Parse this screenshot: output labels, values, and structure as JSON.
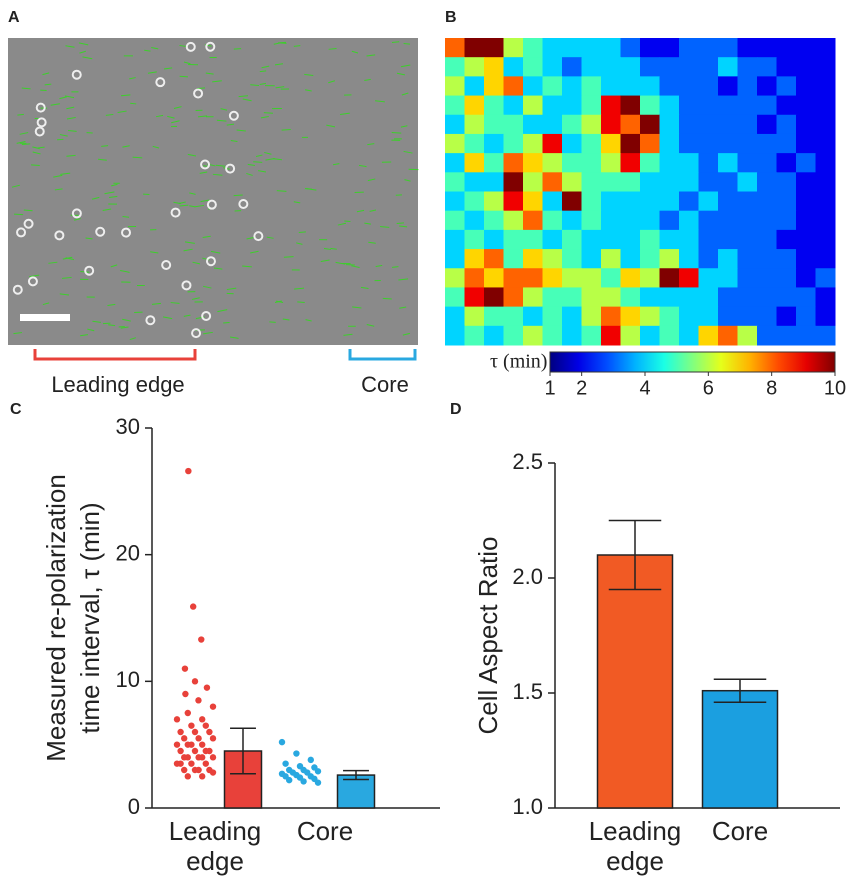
{
  "image_panel": {
    "label": "A",
    "regions": [
      "Leading edge",
      "Core"
    ]
  },
  "chart_data": [
    {
      "type": "heatmap",
      "label": "B",
      "colorbar_label": "τ (min)",
      "colormap": "jet",
      "clim": [
        1,
        10
      ],
      "cticks": [
        1,
        2,
        4,
        6,
        8,
        10
      ],
      "values": [
        [
          8,
          10,
          10,
          6,
          5,
          4,
          4,
          4,
          4,
          3,
          2,
          2,
          3,
          3,
          3,
          2,
          2,
          2,
          2,
          2
        ],
        [
          5,
          6,
          7,
          4,
          5,
          4,
          3,
          4,
          4,
          4,
          3,
          3,
          3,
          3,
          4,
          3,
          3,
          2,
          2,
          2
        ],
        [
          6,
          4,
          7,
          8,
          4,
          5,
          4,
          5,
          4,
          4,
          4,
          3,
          3,
          3,
          2,
          3,
          2,
          3,
          2,
          2
        ],
        [
          5,
          7,
          5,
          4,
          6,
          4,
          4,
          5,
          9,
          10,
          5,
          4,
          3,
          3,
          3,
          3,
          3,
          2,
          2,
          2
        ],
        [
          4,
          6,
          5,
          5,
          4,
          4,
          5,
          6,
          9,
          8,
          10,
          4,
          3,
          3,
          3,
          3,
          2,
          3,
          2,
          2
        ],
        [
          6,
          5,
          4,
          5,
          6,
          9,
          4,
          5,
          7,
          10,
          8,
          4,
          3,
          3,
          3,
          3,
          3,
          3,
          2,
          2
        ],
        [
          4,
          7,
          5,
          8,
          7,
          6,
          5,
          5,
          6,
          9,
          5,
          4,
          4,
          3,
          4,
          3,
          3,
          2,
          3,
          2
        ],
        [
          5,
          4,
          4,
          10,
          6,
          8,
          6,
          5,
          5,
          5,
          4,
          4,
          4,
          3,
          3,
          4,
          3,
          3,
          2,
          2
        ],
        [
          4,
          5,
          6,
          9,
          7,
          4,
          10,
          5,
          4,
          4,
          4,
          4,
          3,
          4,
          3,
          3,
          3,
          3,
          2,
          2
        ],
        [
          5,
          4,
          5,
          6,
          8,
          5,
          4,
          5,
          4,
          4,
          4,
          3,
          4,
          3,
          3,
          3,
          3,
          3,
          2,
          2
        ],
        [
          4,
          5,
          4,
          5,
          5,
          4,
          5,
          4,
          4,
          4,
          5,
          4,
          4,
          3,
          3,
          3,
          3,
          2,
          2,
          2
        ],
        [
          4,
          7,
          8,
          5,
          7,
          6,
          5,
          4,
          6,
          4,
          5,
          6,
          4,
          3,
          4,
          3,
          3,
          3,
          2,
          2
        ],
        [
          6,
          8,
          7,
          8,
          8,
          7,
          6,
          6,
          5,
          7,
          6,
          10,
          9,
          4,
          4,
          3,
          3,
          3,
          2,
          3
        ],
        [
          5,
          9,
          10,
          8,
          6,
          5,
          5,
          6,
          6,
          5,
          4,
          4,
          4,
          4,
          3,
          3,
          3,
          3,
          3,
          2
        ],
        [
          4,
          6,
          5,
          5,
          4,
          5,
          4,
          6,
          8,
          7,
          6,
          5,
          4,
          4,
          3,
          3,
          3,
          2,
          3,
          2
        ],
        [
          4,
          5,
          4,
          5,
          6,
          5,
          4,
          5,
          9,
          6,
          4,
          5,
          4,
          7,
          8,
          6,
          3,
          3,
          3,
          3
        ]
      ]
    },
    {
      "type": "bar_strip",
      "label": "C",
      "ylabel": [
        "Measured re-polarization",
        "time interval, τ (min)"
      ],
      "categories": [
        "Leading edge",
        "Core"
      ],
      "values": [
        4.5,
        2.6
      ],
      "errors": [
        1.8,
        0.35
      ],
      "colors": [
        "#e8413a",
        "#29a8e0"
      ],
      "points": [
        [
          26.6,
          15.9,
          13.3,
          11,
          10,
          9.5,
          9,
          8.5,
          8,
          7.5,
          7,
          7,
          6.5,
          6.5,
          6,
          6,
          6,
          5.5,
          5.5,
          5.5,
          5,
          5,
          5,
          5,
          4.5,
          4.5,
          4.5,
          4.5,
          4,
          4,
          4,
          4,
          4,
          3.5,
          3.5,
          3.5,
          3.5,
          3,
          3,
          3,
          3,
          2.8,
          2.5,
          2.5
        ],
        [
          5.2,
          4.3,
          3.8,
          3.5,
          3.3,
          3.2,
          3,
          3,
          2.9,
          2.8,
          2.8,
          2.7,
          2.6,
          2.5,
          2.5,
          2.4,
          2.3,
          2.2,
          2.1,
          2
        ]
      ],
      "ylim": [
        0,
        30
      ],
      "yticks": [
        0,
        10,
        20,
        30
      ]
    },
    {
      "type": "bar",
      "label": "D",
      "ylabel": "Cell Aspect Ratio",
      "categories": [
        "Leading edge",
        "Core"
      ],
      "values": [
        2.1,
        1.51
      ],
      "errors": [
        0.15,
        0.05
      ],
      "colors": [
        "#f15a24",
        "#1b9fe0"
      ],
      "ylim": [
        1,
        2.5
      ],
      "yticks": [
        {
          "value": 1,
          "label": "1.0"
        },
        1.5,
        {
          "value": 2,
          "label": "2.0"
        },
        2.5
      ]
    }
  ]
}
